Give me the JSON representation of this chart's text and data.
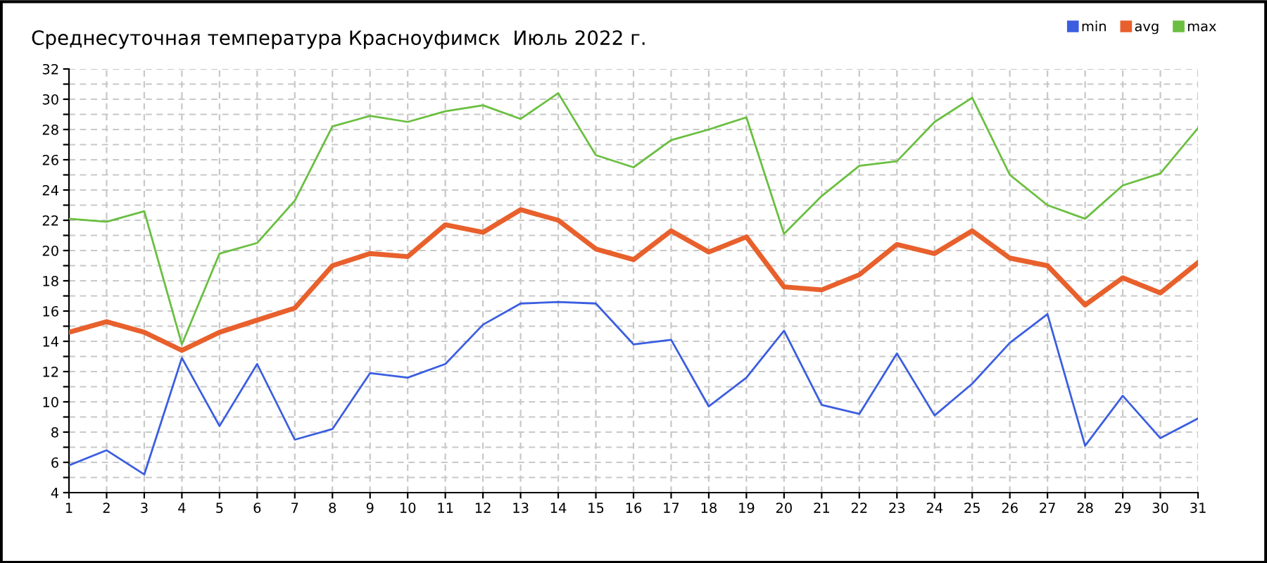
{
  "chart_data": {
    "type": "line",
    "title": "Среднесуточная температура Красноуфимск  Июль 2022 г.",
    "categories": [
      "1",
      "2",
      "3",
      "4",
      "5",
      "6",
      "7",
      "8",
      "9",
      "10",
      "11",
      "12",
      "13",
      "14",
      "15",
      "16",
      "17",
      "18",
      "19",
      "20",
      "21",
      "22",
      "23",
      "24",
      "25",
      "26",
      "27",
      "28",
      "29",
      "30",
      "31"
    ],
    "series": [
      {
        "name": "min",
        "color": "#3b5ee0",
        "values": [
          5.8,
          6.8,
          5.2,
          12.9,
          8.4,
          12.5,
          7.5,
          8.2,
          11.9,
          11.6,
          12.5,
          15.1,
          16.5,
          16.6,
          16.5,
          13.8,
          14.1,
          9.7,
          11.6,
          14.7,
          9.8,
          9.2,
          13.2,
          9.1,
          11.2,
          13.9,
          15.8,
          7.1,
          10.4,
          7.6,
          8.9
        ]
      },
      {
        "name": "avg",
        "color": "#e8602c",
        "values": [
          14.6,
          15.3,
          14.6,
          13.4,
          14.6,
          15.4,
          16.2,
          19.0,
          19.8,
          19.6,
          21.7,
          21.2,
          22.7,
          22.0,
          20.1,
          19.4,
          21.3,
          19.9,
          20.9,
          17.6,
          17.4,
          18.4,
          20.4,
          19.8,
          21.3,
          19.5,
          19.0,
          16.4,
          18.2,
          17.2,
          19.2
        ]
      },
      {
        "name": "max",
        "color": "#6abf40",
        "values": [
          22.1,
          21.9,
          22.6,
          13.8,
          19.8,
          20.5,
          23.3,
          28.2,
          28.9,
          28.5,
          29.2,
          29.6,
          28.7,
          30.4,
          26.3,
          25.5,
          27.3,
          28.0,
          28.8,
          21.1,
          23.6,
          25.6,
          25.9,
          28.5,
          30.1,
          25.0,
          23.0,
          22.1,
          24.3,
          25.1,
          28.1
        ]
      }
    ],
    "ylim": [
      4,
      32
    ],
    "yticks": [
      4,
      {
        "value": 5,
        "label": null
      },
      6,
      {
        "value": 7,
        "label": null
      },
      8,
      {
        "value": 9,
        "label": null
      },
      10,
      {
        "value": 11,
        "label": null
      },
      12,
      {
        "value": 13,
        "label": null
      },
      14,
      {
        "value": 15,
        "label": null
      },
      16,
      {
        "value": 17,
        "label": null
      },
      18,
      {
        "value": 19,
        "label": null
      },
      20,
      {
        "value": 21,
        "label": null
      },
      22,
      {
        "value": 23,
        "label": null
      },
      24,
      {
        "value": 25,
        "label": null
      },
      26,
      {
        "value": 27,
        "label": null
      },
      28,
      {
        "value": 29,
        "label": null
      },
      30,
      {
        "value": 31,
        "label": null
      },
      32
    ],
    "grid": true,
    "legend": "top right",
    "marker": "none",
    "line_style": "solid"
  }
}
